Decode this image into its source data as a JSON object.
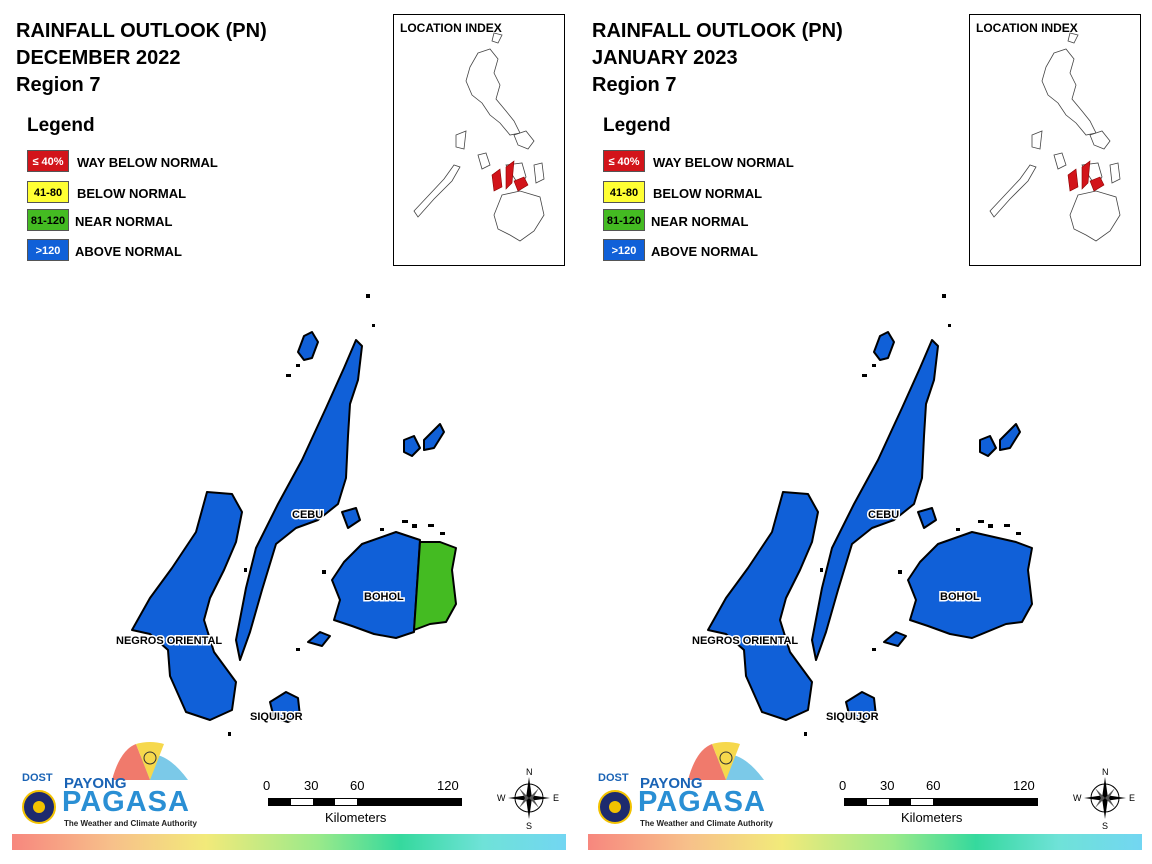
{
  "panels": [
    {
      "title_line1": "RAINFALL OUTLOOK (PN)",
      "title_line2": "DECEMBER 2022",
      "title_line3": "Region 7",
      "legend_title": "Legend",
      "legend": [
        {
          "code": "≤ 40%",
          "label": "WAY BELOW NORMAL",
          "color": "#d2141a",
          "text_color": "#ffffff"
        },
        {
          "code": "41-80",
          "label": "BELOW NORMAL",
          "color": "#ffff33",
          "text_color": "#000000"
        },
        {
          "code": "81-120",
          "label": "NEAR NORMAL",
          "color": "#44bb22",
          "text_color": "#000000"
        },
        {
          "code": ">120",
          "label": "ABOVE NORMAL",
          "color": "#1060d8",
          "text_color": "#ffffff"
        }
      ],
      "location_index_title": "LOCATION INDEX",
      "provinces": {
        "cebu": {
          "label": "CEBU",
          "category": "ABOVE NORMAL",
          "color": "#1060d8"
        },
        "bohol": {
          "label": "BOHOL",
          "category": "ABOVE NORMAL",
          "color": "#1060d8",
          "east_category": "NEAR NORMAL",
          "east_color": "#44bb22"
        },
        "negros_oriental": {
          "label": "NEGROS ORIENTAL",
          "category": "ABOVE NORMAL",
          "color": "#1060d8"
        },
        "siquijor": {
          "label": "SIQUIJOR",
          "category": "ABOVE NORMAL",
          "color": "#1060d8"
        }
      },
      "scale": {
        "ticks": [
          "0",
          "30",
          "60",
          "120"
        ],
        "unit": "Kilometers"
      },
      "compass": {
        "n": "N",
        "s": "S",
        "e": "E",
        "w": "W"
      },
      "logo": {
        "dost": "DOST",
        "payong": "PAYONG",
        "pagasa": "PAGASA",
        "tagline": "The Weather and Climate Authority"
      }
    },
    {
      "title_line1": "RAINFALL OUTLOOK (PN)",
      "title_line2": "JANUARY 2023",
      "title_line3": "Region 7",
      "legend_title": "Legend",
      "legend": [
        {
          "code": "≤ 40%",
          "label": "WAY BELOW NORMAL",
          "color": "#d2141a",
          "text_color": "#ffffff"
        },
        {
          "code": "41-80",
          "label": "BELOW NORMAL",
          "color": "#ffff33",
          "text_color": "#000000"
        },
        {
          "code": "81-120",
          "label": "NEAR NORMAL",
          "color": "#44bb22",
          "text_color": "#000000"
        },
        {
          "code": ">120",
          "label": "ABOVE NORMAL",
          "color": "#1060d8",
          "text_color": "#ffffff"
        }
      ],
      "location_index_title": "LOCATION INDEX",
      "provinces": {
        "cebu": {
          "label": "CEBU",
          "category": "ABOVE NORMAL",
          "color": "#1060d8"
        },
        "bohol": {
          "label": "BOHOL",
          "category": "ABOVE NORMAL",
          "color": "#1060d8",
          "east_category": "ABOVE NORMAL",
          "east_color": "#1060d8"
        },
        "negros_oriental": {
          "label": "NEGROS ORIENTAL",
          "category": "ABOVE NORMAL",
          "color": "#1060d8"
        },
        "siquijor": {
          "label": "SIQUIJOR",
          "category": "ABOVE NORMAL",
          "color": "#1060d8"
        }
      },
      "scale": {
        "ticks": [
          "0",
          "30",
          "60",
          "120"
        ],
        "unit": "Kilometers"
      },
      "compass": {
        "n": "N",
        "s": "S",
        "e": "E",
        "w": "W"
      },
      "logo": {
        "dost": "DOST",
        "payong": "PAYONG",
        "pagasa": "PAGASA",
        "tagline": "The Weather and Climate Authority"
      }
    }
  ]
}
